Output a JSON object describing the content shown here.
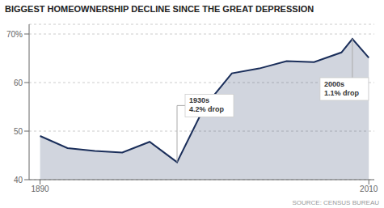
{
  "chart_data": {
    "type": "area",
    "title": "BIGGEST HOMEOWNERSHIP DECLINE SINCE THE GREAT DEPRESSION",
    "source": "SOURCE: CENSUS BUREAU",
    "x": [
      1890,
      1900,
      1910,
      1920,
      1930,
      1940,
      1950,
      1960,
      1970,
      1980,
      1990,
      2000,
      2004,
      2010
    ],
    "values": [
      49.0,
      46.5,
      45.9,
      45.6,
      47.8,
      43.6,
      55.0,
      61.9,
      62.9,
      64.4,
      64.2,
      66.2,
      69.0,
      65.1
    ],
    "color": "#1a2e5a",
    "xlim": [
      1886,
      2012
    ],
    "xticks": [
      1890,
      2010
    ],
    "ylim": [
      40,
      72
    ],
    "yticks": [
      40,
      50,
      60,
      {
        "value": 70,
        "label": "70%"
      }
    ],
    "grid": true,
    "annotations": [
      {
        "text": "1930s\n4.2% drop",
        "x": 1940,
        "y": 43.6
      },
      {
        "text": "2000s\n1.1% drop",
        "x": 2004,
        "y": 69.0
      }
    ]
  }
}
